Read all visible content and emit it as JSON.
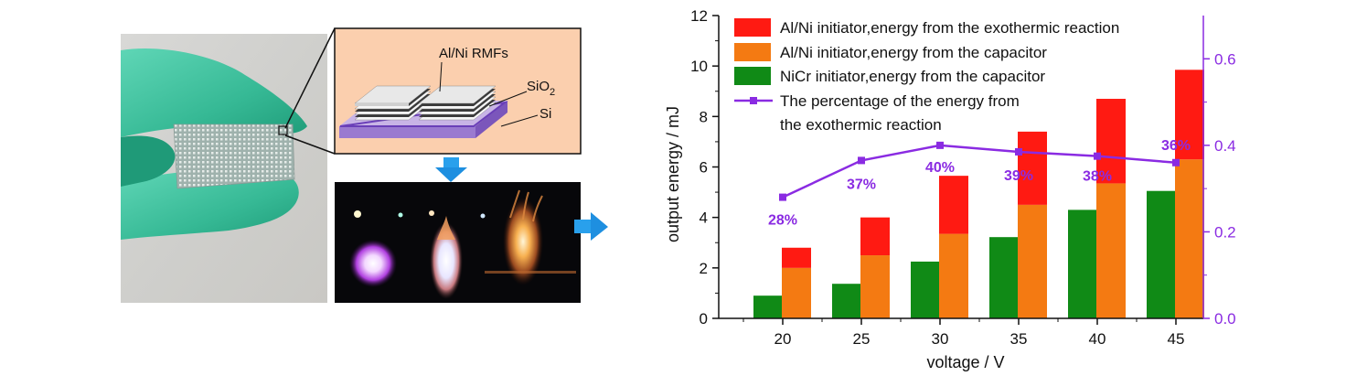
{
  "schematic": {
    "label_film": "Al/Ni RMFs",
    "label_oxide": "SiO",
    "label_oxide_sub": "2",
    "label_substrate": "Si"
  },
  "colors": {
    "alni_exo": "#ff1a12",
    "alni_cap": "#f47a12",
    "nicr_cap": "#108a16",
    "percentage": "#8a2be2",
    "arrow": "#1e8fe0",
    "glove": "#3fc4a3",
    "schematic_bg": "#fbcfae"
  },
  "chart_data": {
    "type": "bar",
    "xlabel": "voltage / V",
    "ylabel": "output energy / mJ",
    "categories": [
      "20",
      "25",
      "30",
      "35",
      "40",
      "45"
    ],
    "ylim": [
      0,
      12
    ],
    "yticks": [
      "0",
      "2",
      "4",
      "6",
      "8",
      "10",
      "12"
    ],
    "y2lim": [
      0,
      0.7
    ],
    "y2ticks": [
      "0.0",
      "0.2",
      "0.4",
      "0.6"
    ],
    "legend_position": "top-left",
    "series": [
      {
        "name": "Al/Ni initiator,energy from the exothermic reaction",
        "color": "#ff1a12",
        "stack_base": [
          2.0,
          2.5,
          3.35,
          4.5,
          5.35,
          6.3
        ],
        "values": [
          0.8,
          1.5,
          2.3,
          2.9,
          3.35,
          3.55
        ]
      },
      {
        "name": "Al/Ni initiator,energy from the capacitor",
        "color": "#f47a12",
        "values": [
          2.0,
          2.5,
          3.35,
          4.5,
          5.35,
          6.3
        ]
      },
      {
        "name": "NiCr initiator,energy from the capacitor",
        "color": "#108a16",
        "values": [
          0.9,
          1.37,
          2.25,
          3.22,
          4.3,
          5.05
        ]
      },
      {
        "name_line1": "The percentage of the energy from",
        "name_line2": "the exothermic reaction",
        "type": "line",
        "axis": "right",
        "color": "#8a2be2",
        "values": [
          0.28,
          0.365,
          0.4,
          0.385,
          0.375,
          0.36
        ],
        "labels": [
          "28%",
          "37%",
          "40%",
          "39%",
          "38%",
          "36%"
        ]
      }
    ]
  }
}
